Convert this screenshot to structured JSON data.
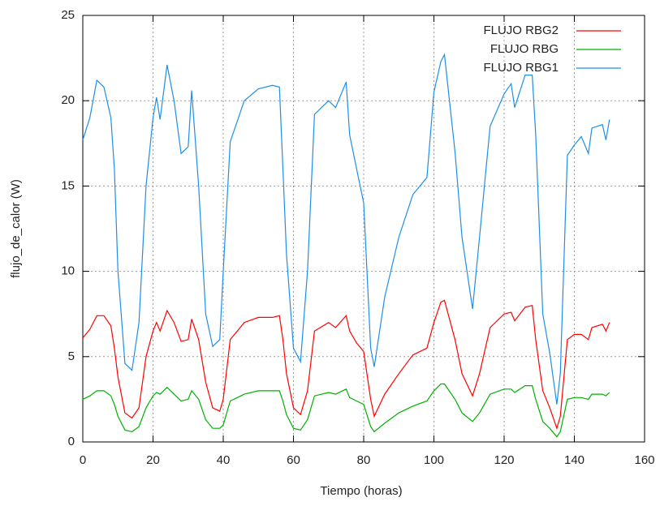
{
  "chart_data": {
    "type": "line",
    "xlabel": "Tiempo (horas)",
    "ylabel": "flujo_de_calor (W)",
    "x": [
      0,
      2,
      4,
      6,
      8,
      9,
      10,
      12,
      14,
      16,
      18,
      20,
      21,
      22,
      24,
      26,
      28,
      30,
      31,
      33,
      35,
      37,
      39,
      40,
      42,
      44,
      46,
      50,
      54,
      56,
      57,
      58,
      60,
      62,
      64,
      66,
      70,
      72,
      75,
      76,
      78,
      80,
      82,
      83,
      86,
      90,
      94,
      98,
      100,
      102,
      103,
      106,
      108,
      111,
      113,
      116,
      120,
      122,
      123,
      126,
      128,
      129,
      131,
      133,
      135,
      136,
      138,
      140,
      142,
      144,
      145,
      148,
      149,
      150
    ],
    "series": [
      {
        "name": "FLUJO RBG2",
        "color": "#ff0000",
        "values": [
          6.1,
          6.6,
          7.4,
          7.4,
          6.8,
          5.5,
          3.8,
          1.7,
          1.4,
          2,
          5,
          6.5,
          7,
          6.5,
          7.7,
          7,
          5.9,
          6,
          7.2,
          6,
          3.5,
          2,
          1.8,
          2.5,
          6,
          6.5,
          7,
          7.3,
          7.3,
          7.4,
          6,
          4,
          2,
          1.6,
          3,
          6.5,
          7,
          6.7,
          7.4,
          6.5,
          5.8,
          5.3,
          2.5,
          1.5,
          2.8,
          4,
          5.1,
          5.5,
          7,
          8.2,
          8.3,
          6,
          4,
          2.7,
          4,
          6.7,
          7.5,
          7.6,
          7.1,
          7.9,
          8,
          6,
          3,
          2,
          0.8,
          1.5,
          6,
          6.3,
          6.3,
          6,
          6.7,
          6.9,
          6.5,
          7
        ]
      },
      {
        "name": "FLUJO RBG",
        "color": "#00b000",
        "values": [
          2.5,
          2.7,
          3,
          3,
          2.7,
          2.2,
          1.5,
          0.7,
          0.6,
          0.9,
          2,
          2.7,
          2.9,
          2.8,
          3.2,
          2.8,
          2.4,
          2.5,
          3,
          2.5,
          1.3,
          0.8,
          0.8,
          1,
          2.4,
          2.6,
          2.8,
          3,
          3,
          3,
          2.4,
          1.6,
          0.8,
          0.7,
          1.3,
          2.7,
          2.9,
          2.8,
          3.1,
          2.6,
          2.4,
          2.2,
          0.9,
          0.6,
          1.1,
          1.7,
          2.1,
          2.4,
          3,
          3.4,
          3.4,
          2.5,
          1.7,
          1.2,
          1.7,
          2.8,
          3.1,
          3.1,
          2.9,
          3.3,
          3.3,
          2.5,
          1.2,
          0.8,
          0.3,
          0.6,
          2.5,
          2.6,
          2.6,
          2.5,
          2.8,
          2.8,
          2.7,
          2.9
        ]
      },
      {
        "name": "FLUJO RBG1",
        "color": "#1e8fe6",
        "values": [
          17.7,
          19,
          21.2,
          20.8,
          19,
          16,
          10,
          4.6,
          4.2,
          7,
          15,
          19,
          20.2,
          18.9,
          22.1,
          20,
          16.9,
          17.3,
          20.6,
          15,
          7.5,
          5.6,
          6,
          10,
          17.6,
          18.8,
          20,
          20.7,
          20.9,
          20.8,
          16,
          11,
          5.5,
          4.7,
          10,
          19.2,
          20,
          19.6,
          21.1,
          18,
          16,
          14,
          5.5,
          4.4,
          8.5,
          12,
          14.5,
          15.5,
          20.5,
          22.3,
          22.7,
          17,
          12,
          7.8,
          12,
          18.5,
          20.4,
          21,
          19.6,
          21.5,
          21.5,
          18,
          7.5,
          5.2,
          2.2,
          4,
          16.8,
          17.4,
          17.9,
          16.9,
          18.4,
          18.6,
          17.7,
          18.9
        ]
      }
    ],
    "xlim": [
      0,
      160
    ],
    "xticks": [
      0,
      20,
      40,
      60,
      80,
      100,
      120,
      140,
      160
    ],
    "ylim": [
      0,
      25
    ],
    "yticks": [
      0,
      5,
      10,
      15,
      20,
      25
    ],
    "grid": true,
    "legend": "top-right"
  }
}
